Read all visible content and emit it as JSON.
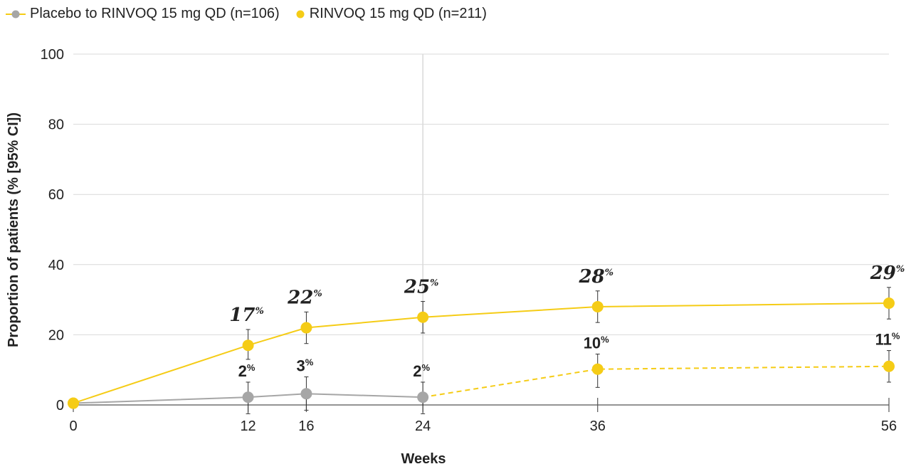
{
  "legend": {
    "placebo": "Placebo to RINVOQ 15 mg QD (n=106)",
    "rinvoq": "RINVOQ 15 mg QD (n=211)"
  },
  "colors": {
    "yellow": "#F5CC16",
    "gray": "#A6A6A6",
    "grid": "#D9D9D9",
    "axis": "#555555"
  },
  "chart_data": {
    "type": "line",
    "xlabel": "Weeks",
    "ylabel": "Proportion of patients (% [95% CI])",
    "ylim": [
      0,
      100
    ],
    "yticks": [
      0,
      20,
      40,
      60,
      80,
      100
    ],
    "xticks": [
      0,
      12,
      16,
      24,
      36,
      56
    ],
    "xlim": [
      0,
      56
    ],
    "grid": "horizontal",
    "legend_position": "top-left",
    "reference_line_x": 24,
    "series": [
      {
        "name": "RINVOQ 15 mg QD (n=211)",
        "color": "#F5CC16",
        "line": "solid",
        "points": [
          {
            "x": 0,
            "y": 0.5
          },
          {
            "x": 12,
            "y": 17,
            "ci": [
              13,
              21.5
            ],
            "label": "17"
          },
          {
            "x": 16,
            "y": 22,
            "ci": [
              17.5,
              26.5
            ],
            "label": "22"
          },
          {
            "x": 24,
            "y": 25,
            "ci": [
              20.5,
              29.5
            ],
            "label": "25"
          },
          {
            "x": 36,
            "y": 28,
            "ci": [
              23.5,
              32.5
            ],
            "label": "28"
          },
          {
            "x": 56,
            "y": 29,
            "ci": [
              24.5,
              33.5
            ],
            "label": "29"
          }
        ]
      },
      {
        "name": "Placebo to RINVOQ 15 mg QD (n=106)",
        "color": "#A6A6A6",
        "line": "solid",
        "points": [
          {
            "x": 0,
            "y": 0.5
          },
          {
            "x": 12,
            "y": 2.2,
            "ci": [
              -2.5,
              6.5
            ],
            "label": "2"
          },
          {
            "x": 16,
            "y": 3.2,
            "ci": [
              -1.5,
              8
            ],
            "label": "3"
          },
          {
            "x": 24,
            "y": 2.2,
            "ci": [
              -2.5,
              6.5
            ],
            "label": "2"
          }
        ]
      },
      {
        "name": "Placebo to RINVOQ 15 mg QD (n=106)",
        "color": "#F5CC16",
        "line": "dashed",
        "points": [
          {
            "x": 24,
            "y": 2.2
          },
          {
            "x": 36,
            "y": 10.2,
            "ci": [
              5,
              14.5
            ],
            "label": "10"
          },
          {
            "x": 56,
            "y": 11,
            "ci": [
              6.5,
              15.5
            ],
            "label": "11"
          }
        ]
      }
    ]
  }
}
